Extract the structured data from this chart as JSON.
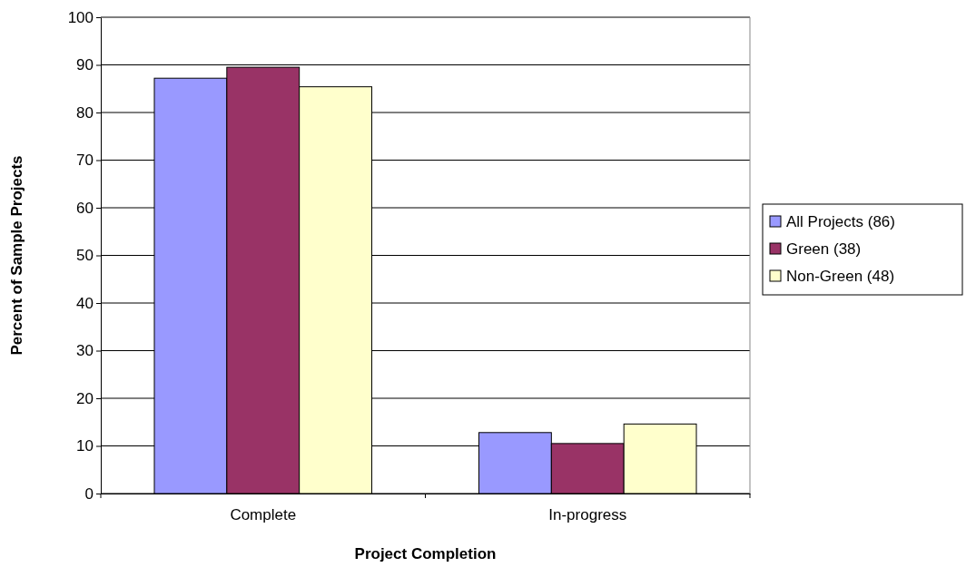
{
  "chart_data": {
    "type": "bar",
    "xlabel": "Project Completion",
    "ylabel": "Percent of Sample Projects",
    "categories": [
      "Complete",
      "In-progress"
    ],
    "series": [
      {
        "name": "All Projects (86)",
        "color": "#9999ff",
        "values": [
          87.2,
          12.8
        ]
      },
      {
        "name": "Green (38)",
        "color": "#993366",
        "values": [
          89.5,
          10.5
        ]
      },
      {
        "name": "Non-Green (48)",
        "color": "#ffffcc",
        "values": [
          85.4,
          14.6
        ]
      }
    ],
    "ylim": [
      0,
      100
    ],
    "yticks": [
      0,
      10,
      20,
      30,
      40,
      50,
      60,
      70,
      80,
      90,
      100
    ],
    "grid": "y",
    "legend": "right"
  }
}
